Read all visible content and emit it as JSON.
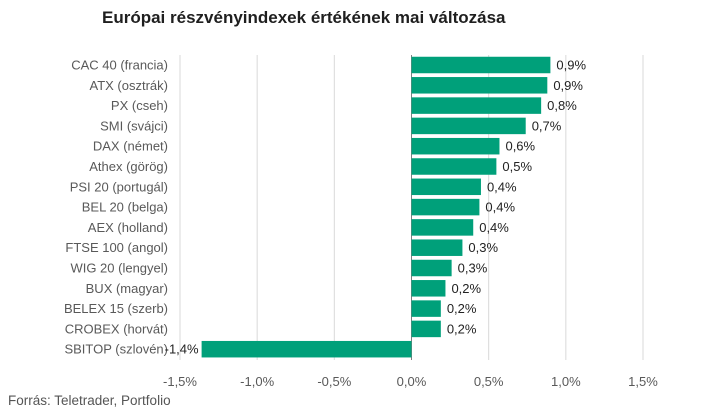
{
  "title": "Európai részvényindexek értékének mai változása",
  "source": "Forrás: Teletrader, Portfolio",
  "colors": {
    "bar": "#00a07a",
    "grid": "#d9d9d9",
    "zero_line": "#7f7f7f"
  },
  "chart_data": {
    "type": "bar",
    "orientation": "horizontal",
    "title": "Európai részvényindexek értékének mai változása",
    "categories": [
      "CAC 40 (francia)",
      "ATX (osztrák)",
      "PX (cseh)",
      "SMI (svájci)",
      "DAX (német)",
      "Athex (görög)",
      "PSI 20 (portugál)",
      "BEL 20 (belga)",
      "AEX (holland)",
      "FTSE 100 (angol)",
      "WIG 20 (lengyel)",
      "BUX (magyar)",
      "BELEX 15 (szerb)",
      "CROBEX (horvát)",
      "SBITOP (szlovén)"
    ],
    "values": [
      0.9,
      0.88,
      0.84,
      0.74,
      0.57,
      0.55,
      0.45,
      0.44,
      0.4,
      0.33,
      0.26,
      0.22,
      0.19,
      0.19,
      -1.36
    ],
    "value_labels": [
      "0,9%",
      "0,9%",
      "0,8%",
      "0,7%",
      "0,6%",
      "0,5%",
      "0,4%",
      "0,4%",
      "0,4%",
      "0,3%",
      "0,3%",
      "0,2%",
      "0,2%",
      "0,2%",
      "-1,4%"
    ],
    "xlim": [
      -1.5,
      1.5
    ],
    "xticks": [
      -1.5,
      -1.0,
      -0.5,
      0.0,
      0.5,
      1.0,
      1.5
    ],
    "xtick_labels": [
      "-1,5%",
      "-1,0%",
      "-0,5%",
      "0,0%",
      "0,5%",
      "1,0%",
      "1,5%"
    ],
    "grid": true,
    "legend": false
  }
}
